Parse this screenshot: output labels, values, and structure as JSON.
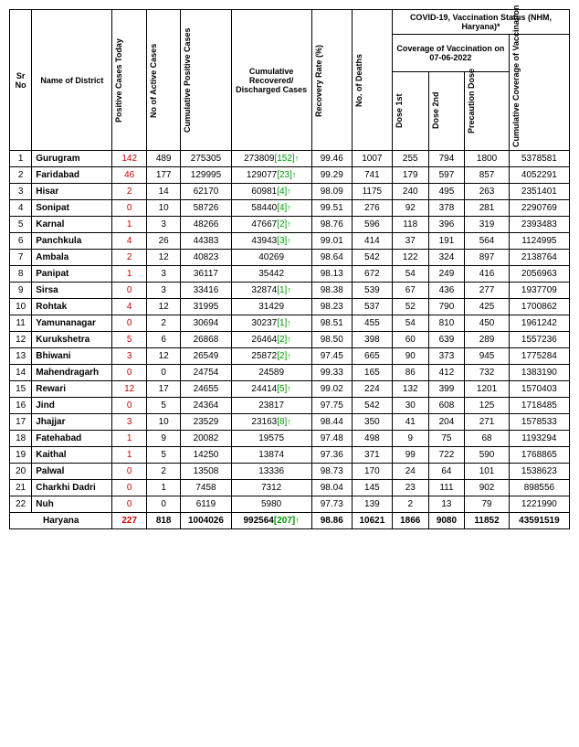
{
  "headers": {
    "sr": "Sr No",
    "name": "Name of District",
    "pct": "Positive Cases Today",
    "active": "No of Active Cases",
    "cumpos": "Cumulative Positive Cases",
    "cumrec": "Cumulative Recovered/ Discharged Cases",
    "recrate": "Recovery Rate (%)",
    "deaths": "No. of Deaths",
    "vacc_group": "COVID-19, Vaccination Status (NHM, Haryana)*",
    "cov_on": "Coverage of Vaccination on 07-06-2022",
    "dose1": "Dose 1st",
    "dose2": "Dose 2nd",
    "precaution": "Precaution Dose",
    "cumcov": "Cumulative Coverage of Vaccination"
  },
  "rows": [
    {
      "sr": "1",
      "name": "Gurugram",
      "pct": "142",
      "active": "489",
      "cumpos": "275305",
      "rec": "273809",
      "recg": "[152]",
      "arrow": true,
      "rate": "99.46",
      "deaths": "1007",
      "d1": "255",
      "d2": "794",
      "pd": "1800",
      "cc": "5378581"
    },
    {
      "sr": "2",
      "name": "Faridabad",
      "pct": "46",
      "active": "177",
      "cumpos": "129995",
      "rec": "129077",
      "recg": "[23]",
      "arrow": true,
      "rate": "99.29",
      "deaths": "741",
      "d1": "179",
      "d2": "597",
      "pd": "857",
      "cc": "4052291"
    },
    {
      "sr": "3",
      "name": "Hisar",
      "pct": "2",
      "active": "14",
      "cumpos": "62170",
      "rec": "60981",
      "recg": "[4]",
      "arrow": true,
      "rate": "98.09",
      "deaths": "1175",
      "d1": "240",
      "d2": "495",
      "pd": "263",
      "cc": "2351401"
    },
    {
      "sr": "4",
      "name": "Sonipat",
      "pct": "0",
      "active": "10",
      "cumpos": "58726",
      "rec": "58440",
      "recg": "[4]",
      "arrow": true,
      "rate": "99.51",
      "deaths": "276",
      "d1": "92",
      "d2": "378",
      "pd": "281",
      "cc": "2290769"
    },
    {
      "sr": "5",
      "name": "Karnal",
      "pct": "1",
      "active": "3",
      "cumpos": "48266",
      "rec": "47667",
      "recg": "[2]",
      "arrow": true,
      "rate": "98.76",
      "deaths": "596",
      "d1": "118",
      "d2": "396",
      "pd": "319",
      "cc": "2393483"
    },
    {
      "sr": "6",
      "name": "Panchkula",
      "pct": "4",
      "active": "26",
      "cumpos": "44383",
      "rec": "43943",
      "recg": "[3]",
      "arrow": true,
      "rate": "99.01",
      "deaths": "414",
      "d1": "37",
      "d2": "191",
      "pd": "564",
      "cc": "1124995"
    },
    {
      "sr": "7",
      "name": "Ambala",
      "pct": "2",
      "active": "12",
      "cumpos": "40823",
      "rec": "40269",
      "recg": "",
      "arrow": false,
      "rate": "98.64",
      "deaths": "542",
      "d1": "122",
      "d2": "324",
      "pd": "897",
      "cc": "2138764"
    },
    {
      "sr": "8",
      "name": "Panipat",
      "pct": "1",
      "active": "3",
      "cumpos": "36117",
      "rec": "35442",
      "recg": "",
      "arrow": false,
      "rate": "98.13",
      "deaths": "672",
      "d1": "54",
      "d2": "249",
      "pd": "416",
      "cc": "2056963"
    },
    {
      "sr": "9",
      "name": "Sirsa",
      "pct": "0",
      "active": "3",
      "cumpos": "33416",
      "rec": "32874",
      "recg": "[1]",
      "arrow": true,
      "rate": "98.38",
      "deaths": "539",
      "d1": "67",
      "d2": "436",
      "pd": "277",
      "cc": "1937709"
    },
    {
      "sr": "10",
      "name": "Rohtak",
      "pct": "4",
      "active": "12",
      "cumpos": "31995",
      "rec": "31429",
      "recg": "",
      "arrow": false,
      "rate": "98.23",
      "deaths": "537",
      "d1": "52",
      "d2": "790",
      "pd": "425",
      "cc": "1700862"
    },
    {
      "sr": "11",
      "name": "Yamunanagar",
      "pct": "0",
      "active": "2",
      "cumpos": "30694",
      "rec": "30237",
      "recg": "[1]",
      "arrow": true,
      "rate": "98.51",
      "deaths": "455",
      "d1": "54",
      "d2": "810",
      "pd": "450",
      "cc": "1961242"
    },
    {
      "sr": "12",
      "name": "Kurukshetra",
      "pct": "5",
      "active": "6",
      "cumpos": "26868",
      "rec": "26464",
      "recg": "[2]",
      "arrow": true,
      "rate": "98.50",
      "deaths": "398",
      "d1": "60",
      "d2": "639",
      "pd": "289",
      "cc": "1557236"
    },
    {
      "sr": "13",
      "name": "Bhiwani",
      "pct": "3",
      "active": "12",
      "cumpos": "26549",
      "rec": "25872",
      "recg": "[2]",
      "arrow": true,
      "rate": "97.45",
      "deaths": "665",
      "d1": "90",
      "d2": "373",
      "pd": "945",
      "cc": "1775284"
    },
    {
      "sr": "14",
      "name": "Mahendragarh",
      "pct": "0",
      "active": "0",
      "cumpos": "24754",
      "rec": "24589",
      "recg": "",
      "arrow": false,
      "rate": "99.33",
      "deaths": "165",
      "d1": "86",
      "d2": "412",
      "pd": "732",
      "cc": "1383190"
    },
    {
      "sr": "15",
      "name": "Rewari",
      "pct": "12",
      "active": "17",
      "cumpos": "24655",
      "rec": "24414",
      "recg": "[5]",
      "arrow": true,
      "rate": "99.02",
      "deaths": "224",
      "d1": "132",
      "d2": "399",
      "pd": "1201",
      "cc": "1570403"
    },
    {
      "sr": "16",
      "name": "Jind",
      "pct": "0",
      "active": "5",
      "cumpos": "24364",
      "rec": "23817",
      "recg": "",
      "arrow": false,
      "rate": "97.75",
      "deaths": "542",
      "d1": "30",
      "d2": "608",
      "pd": "125",
      "cc": "1718485"
    },
    {
      "sr": "17",
      "name": "Jhajjar",
      "pct": "3",
      "active": "10",
      "cumpos": "23529",
      "rec": "23163",
      "recg": "[8]",
      "arrow": true,
      "rate": "98.44",
      "deaths": "350",
      "d1": "41",
      "d2": "204",
      "pd": "271",
      "cc": "1578533"
    },
    {
      "sr": "18",
      "name": "Fatehabad",
      "pct": "1",
      "active": "9",
      "cumpos": "20082",
      "rec": "19575",
      "recg": "",
      "arrow": false,
      "rate": "97.48",
      "deaths": "498",
      "d1": "9",
      "d2": "75",
      "pd": "68",
      "cc": "1193294"
    },
    {
      "sr": "19",
      "name": "Kaithal",
      "pct": "1",
      "active": "5",
      "cumpos": "14250",
      "rec": "13874",
      "recg": "",
      "arrow": false,
      "rate": "97.36",
      "deaths": "371",
      "d1": "99",
      "d2": "722",
      "pd": "590",
      "cc": "1768865"
    },
    {
      "sr": "20",
      "name": "Palwal",
      "pct": "0",
      "active": "2",
      "cumpos": "13508",
      "rec": "13336",
      "recg": "",
      "arrow": false,
      "rate": "98.73",
      "deaths": "170",
      "d1": "24",
      "d2": "64",
      "pd": "101",
      "cc": "1538623"
    },
    {
      "sr": "21",
      "name": "Charkhi Dadri",
      "pct": "0",
      "active": "1",
      "cumpos": "7458",
      "rec": "7312",
      "recg": "",
      "arrow": false,
      "rate": "98.04",
      "deaths": "145",
      "d1": "23",
      "d2": "111",
      "pd": "902",
      "cc": "898556"
    },
    {
      "sr": "22",
      "name": "Nuh",
      "pct": "0",
      "active": "0",
      "cumpos": "6119",
      "rec": "5980",
      "recg": "",
      "arrow": false,
      "rate": "97.73",
      "deaths": "139",
      "d1": "2",
      "d2": "13",
      "pd": "79",
      "cc": "1221990"
    }
  ],
  "total": {
    "name": "Haryana",
    "pct": "227",
    "active": "818",
    "cumpos": "1004026",
    "rec": "992564",
    "recg": "[207]",
    "arrow": true,
    "rate": "98.86",
    "deaths": "10621",
    "d1": "1866",
    "d2": "9080",
    "pd": "11852",
    "cc": "43591519"
  }
}
